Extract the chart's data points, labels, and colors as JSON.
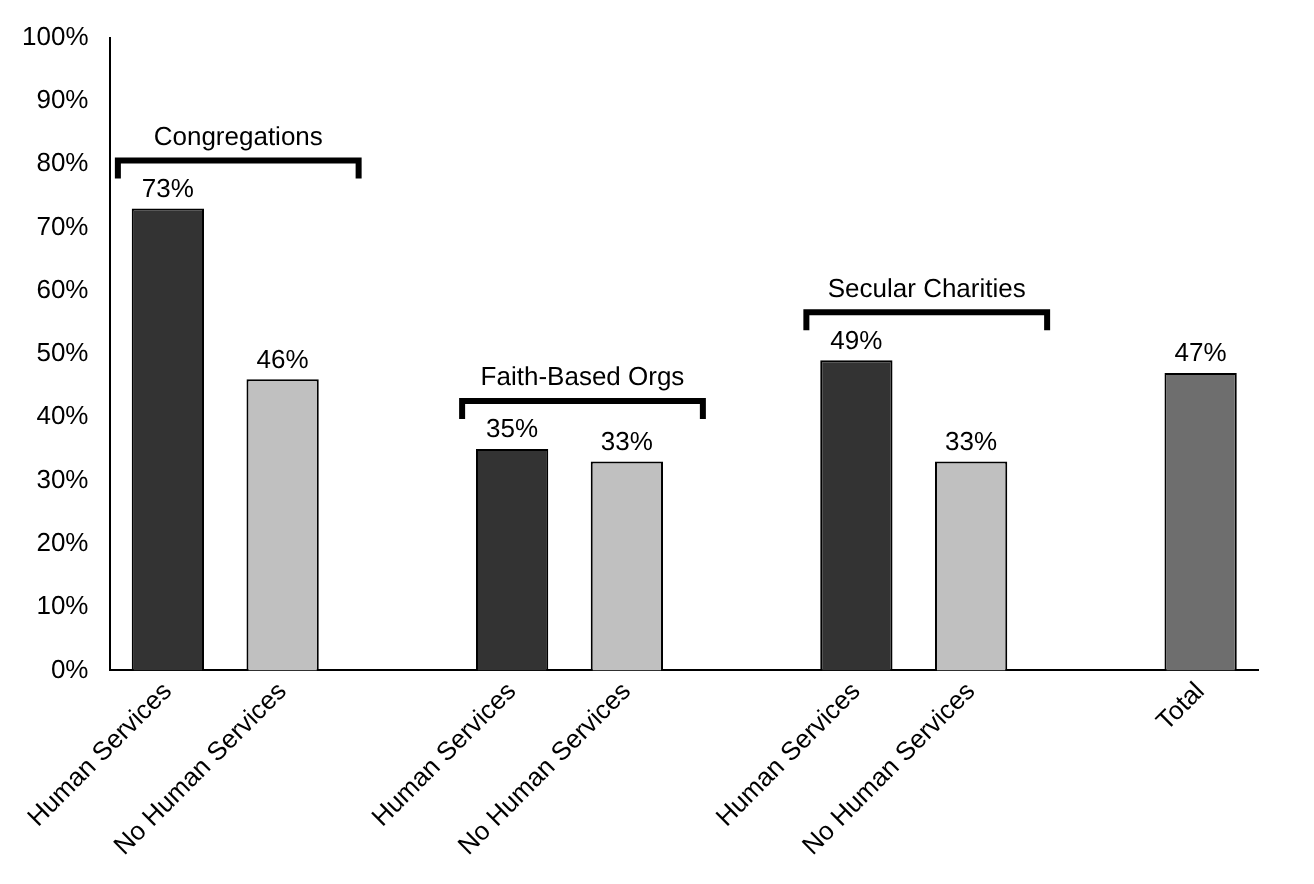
{
  "chart_data": {
    "type": "bar",
    "categories": [
      "Human Services",
      "No Human Services",
      null,
      "Human Services",
      "No Human Services",
      null,
      "Human Services",
      "No Human Services",
      null,
      "Total"
    ],
    "values": [
      73,
      46,
      null,
      35,
      33,
      null,
      49,
      33,
      null,
      47
    ],
    "colors": [
      "#333333",
      "#c0c0c0",
      "#333333",
      "#333333",
      "#c0c0c0",
      "#333333",
      "#333333",
      "#c0c0c0",
      "#333333",
      "#6e6e6e"
    ],
    "value_labels": [
      "73%",
      "46%",
      null,
      "35%",
      "33%",
      null,
      "49%",
      "33%",
      null,
      "47%"
    ],
    "ylim": [
      0,
      100
    ],
    "yticks": [
      {
        "value": 0,
        "label": "0%"
      },
      {
        "value": 10,
        "label": "10%"
      },
      {
        "value": 20,
        "label": "20%"
      },
      {
        "value": 30,
        "label": "30%"
      },
      {
        "value": 40,
        "label": "40%"
      },
      {
        "value": 50,
        "label": "50%"
      },
      {
        "value": 60,
        "label": "60%"
      },
      {
        "value": 70,
        "label": "70%"
      },
      {
        "value": 80,
        "label": "80%"
      },
      {
        "value": 90,
        "label": "90%"
      },
      {
        "value": 100,
        "label": "100%"
      }
    ],
    "annotations": [
      "Congregations",
      "Faith-Based Orgs",
      "Secular Charities"
    ],
    "grid": false,
    "legend": false
  }
}
